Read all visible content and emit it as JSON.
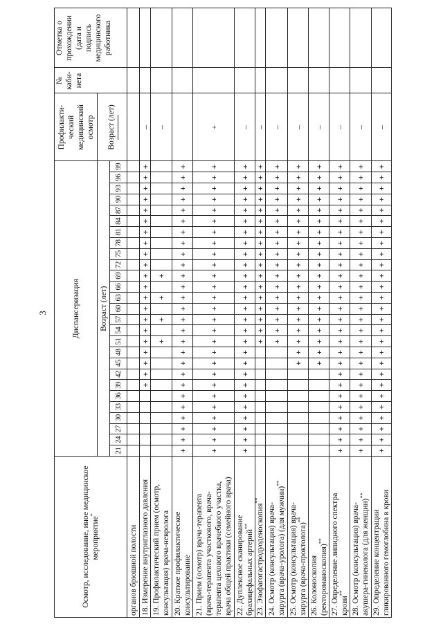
{
  "page_number": "3",
  "header": {
    "name": "Осмотр, исследование, иное медицинское мероприятие",
    "name_star": "*",
    "dispensary": "Диспансеризация",
    "age_label": "Возраст (лет)",
    "prof_lines": [
      "Профилакти-",
      "ческий",
      "медицинский",
      "осмотр"
    ],
    "prof_age_label": "Возраст (лет)",
    "cabinet_lines": [
      "№",
      "каби-",
      "нета"
    ],
    "note_lines": [
      "Отметка о",
      "прохождении",
      "(дата и",
      "подпись",
      "медицинского",
      "работника"
    ]
  },
  "ages": [
    "21",
    "24",
    "27",
    "30",
    "33",
    "36",
    "39",
    "42",
    "45",
    "48",
    "51",
    "54",
    "57",
    "60",
    "63",
    "66",
    "69",
    "72",
    "75",
    "78",
    "81",
    "84",
    "87",
    "90",
    "93",
    "96",
    "99"
  ],
  "rows": [
    {
      "lines": [
        "органов брюшной полости"
      ],
      "stars": "",
      "plus_ages": [],
      "prof": ""
    },
    {
      "lines": [
        "18. Измерение внутриглазного давления"
      ],
      "stars": "",
      "plus_ages": [
        "39",
        "42",
        "45",
        "48",
        "51",
        "54",
        "57",
        "60",
        "63",
        "66",
        "69",
        "72",
        "75",
        "78",
        "81",
        "84",
        "87",
        "90",
        "93",
        "96",
        "99"
      ],
      "prof": "–"
    },
    {
      "lines": [
        "19. Профилактический прием (осмотр,",
        "консультация) врача-невролога"
      ],
      "stars": "",
      "plus_ages": [
        "51",
        "57",
        "63",
        "69"
      ],
      "prof": "–"
    },
    {
      "lines": [
        "20. Краткое профилактическое",
        "консультирование"
      ],
      "stars": "",
      "plus_ages": "all",
      "prof": ""
    },
    {
      "lines": [
        "21. Прием (осмотр) врача-терапевта",
        "(врача-терапевта участкового, врача-",
        "терапевта цехового врачебного участка,",
        "врача общей практики (семейного врача)"
      ],
      "stars": "",
      "plus_ages": "all",
      "prof": "+"
    },
    {
      "lines": [
        "22. Дуплексное сканирование",
        "брахицефальных артерий"
      ],
      "stars": "**",
      "plus_ages": "all",
      "prof": "–"
    },
    {
      "lines": [
        "23. Эзофагогастродуоденоскопия"
      ],
      "stars": "**",
      "plus_ages": [
        "51",
        "54",
        "57",
        "60",
        "63",
        "66",
        "69",
        "72",
        "75",
        "78",
        "81",
        "84",
        "87",
        "90",
        "93",
        "96",
        "99"
      ],
      "prof": "–"
    },
    {
      "lines": [
        "24. Осмотр (консультация) врача-",
        "хирурга (врача-уролога) (для мужчин)"
      ],
      "stars": "**",
      "plus_ages": [
        "51",
        "54",
        "57",
        "60",
        "63",
        "66",
        "69",
        "72",
        "75",
        "78",
        "81",
        "84",
        "87",
        "90",
        "93",
        "96",
        "99"
      ],
      "prof": "–"
    },
    {
      "lines": [
        "25. Осмотр (консультация) врача-",
        "хирурга (врача-проктолога)"
      ],
      "stars": "**",
      "plus_ages": [
        "45",
        "48",
        "51",
        "54",
        "57",
        "60",
        "63",
        "66",
        "69",
        "72",
        "75",
        "78",
        "81",
        "84",
        "87",
        "90",
        "93",
        "96",
        "99"
      ],
      "prof": "–"
    },
    {
      "lines": [
        "26. Колоноскопия",
        "(ректороманоскопия)"
      ],
      "stars": "**",
      "plus_ages": [
        "45",
        "48",
        "51",
        "54",
        "57",
        "60",
        "63",
        "66",
        "69",
        "72",
        "75",
        "78",
        "81",
        "84",
        "87",
        "90",
        "93",
        "96",
        "99"
      ],
      "prof": "–"
    },
    {
      "lines": [
        "27. Определение липидного спектра",
        "крови"
      ],
      "stars": "**",
      "plus_ages": "all",
      "prof": "–"
    },
    {
      "lines": [
        "28. Осмотр (консультация) врача-",
        "акушера-гинеколога (для женщин)"
      ],
      "stars": "**",
      "plus_ages": "all",
      "prof": "–"
    },
    {
      "lines": [
        "29. Определение концентрации",
        "гликированного гемоглобина в крови"
      ],
      "stars": "",
      "plus_ages": "all",
      "prof": "–"
    }
  ]
}
